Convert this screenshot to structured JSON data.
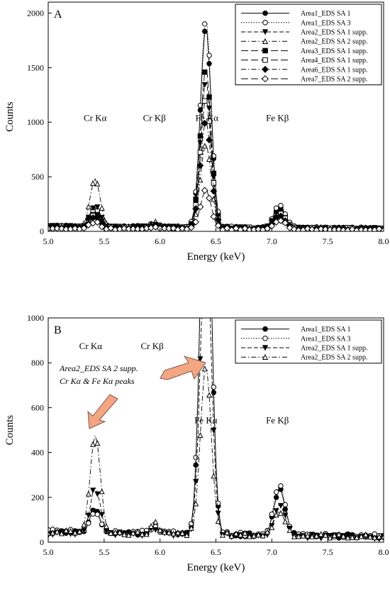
{
  "chart_data": [
    {
      "type": "line",
      "panel": "A",
      "xlabel": "Energy (keV)",
      "ylabel": "Counts",
      "xlim": [
        5.0,
        8.0
      ],
      "ylim": [
        0,
        2100
      ],
      "xticks": [
        "5.0",
        "5.5",
        "6.0",
        "6.5",
        "7.0",
        "7.5",
        "8.0"
      ],
      "yticks": [
        "0",
        "500",
        "1000",
        "1500",
        "2000"
      ],
      "grid": false,
      "legend_position": "top-right",
      "peak_labels": [
        {
          "text": "Cr Kα",
          "x": 5.42,
          "y": 1010
        },
        {
          "text": "Cr Kβ",
          "x": 5.95,
          "y": 1010
        },
        {
          "text": "Fe Kα",
          "x": 6.42,
          "y": 1010
        },
        {
          "text": "Fe Kβ",
          "x": 7.05,
          "y": 1010
        }
      ],
      "series": [
        {
          "name": "Area1_EDS SA 1",
          "marker": "circle-filled",
          "dash": "solid",
          "bg": 45,
          "cr_ka": 215,
          "cr_kb": 75,
          "fe_ka": 1880,
          "fe_kb": 240
        },
        {
          "name": "Area1_EDS SA 3",
          "marker": "circle-open",
          "dash": "dotted",
          "bg": 50,
          "cr_ka": 200,
          "cr_kb": 80,
          "fe_ka": 1960,
          "fe_kb": 265
        },
        {
          "name": "Area2_EDS SA 1 supp.",
          "marker": "triangle-down-filled",
          "dash": "dashed",
          "bg": 40,
          "cr_ka": 240,
          "cr_kb": 70,
          "fe_ka": 1380,
          "fe_kb": 175
        },
        {
          "name": "Area2_EDS SA 2 supp.",
          "marker": "triangle-up-open",
          "dash": "dashdot",
          "bg": 45,
          "cr_ka": 480,
          "cr_kb": 95,
          "fe_ka": 800,
          "fe_kb": 150
        },
        {
          "name": "Area3_EDS SA 1 supp.",
          "marker": "square-filled",
          "dash": "longdash",
          "bg": 45,
          "cr_ka": 170,
          "cr_kb": 70,
          "fe_ka": 1500,
          "fe_kb": 200
        },
        {
          "name": "Area4_EDS SA 1 supp.",
          "marker": "square-open",
          "dash": "longdash",
          "bg": 40,
          "cr_ka": 150,
          "cr_kb": 65,
          "fe_ka": 1220,
          "fe_kb": 180
        },
        {
          "name": "Area6_EDS SA 1 supp.",
          "marker": "diamond-filled",
          "dash": "dashdot",
          "bg": 40,
          "cr_ka": 135,
          "cr_kb": 60,
          "fe_ka": 1020,
          "fe_kb": 160
        },
        {
          "name": "Area7_EDS SA 2 supp.",
          "marker": "diamond-open",
          "dash": "longdash",
          "bg": 25,
          "cr_ka": 90,
          "cr_kb": 45,
          "fe_ka": 380,
          "fe_kb": 115
        }
      ]
    },
    {
      "type": "line",
      "panel": "B",
      "xlabel": "Energy (keV)",
      "ylabel": "Counts",
      "xlim": [
        5.0,
        8.0
      ],
      "ylim": [
        0,
        1000
      ],
      "xticks": [
        "5.0",
        "5.5",
        "6.0",
        "6.5",
        "7.0",
        "7.5",
        "8.0"
      ],
      "yticks": [
        "0",
        "200",
        "400",
        "600",
        "800",
        "1000"
      ],
      "grid": false,
      "legend_position": "top-right",
      "peak_labels": [
        {
          "text": "Cr Kα",
          "x": 5.38,
          "y": 860
        },
        {
          "text": "Cr Kβ",
          "x": 5.93,
          "y": 860
        },
        {
          "text": "Fe Kα",
          "x": 6.41,
          "y": 530
        },
        {
          "text": "Fe Kβ",
          "x": 7.05,
          "y": 530
        }
      ],
      "annotation": {
        "lines": [
          "Area2_EDS SA 2 supp.",
          "Cr Kα & Fe Kα peaks"
        ]
      },
      "series": [
        {
          "name": "Area1_EDS SA 1",
          "marker": "circle-filled",
          "dash": "solid",
          "bg": 45,
          "cr_ka": 150,
          "cr_kb": 75,
          "fe_ka": 1880,
          "fe_kb": 250
        },
        {
          "name": "Area1_EDS SA 3",
          "marker": "circle-open",
          "dash": "dotted",
          "bg": 50,
          "cr_ka": 140,
          "cr_kb": 80,
          "fe_ka": 1960,
          "fe_kb": 270
        },
        {
          "name": "Area2_EDS SA 1 supp.",
          "marker": "triangle-down-filled",
          "dash": "dashed",
          "bg": 40,
          "cr_ka": 245,
          "cr_kb": 70,
          "fe_ka": 1380,
          "fe_kb": 180
        },
        {
          "name": "Area2_EDS SA 2 supp.",
          "marker": "triangle-up-open",
          "dash": "dashdot",
          "bg": 45,
          "cr_ka": 480,
          "cr_kb": 95,
          "fe_ka": 800,
          "fe_kb": 150
        }
      ]
    }
  ]
}
